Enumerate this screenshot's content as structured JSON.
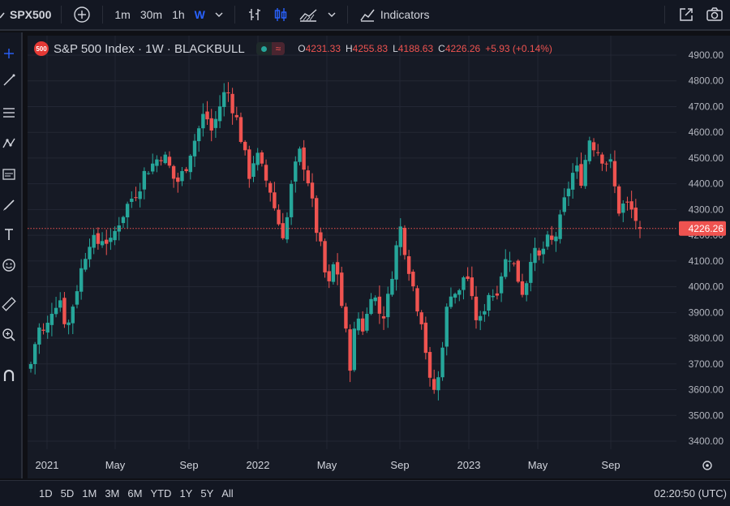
{
  "toolbar": {
    "symbol": "SPX500",
    "intervals": [
      "1m",
      "30m",
      "1h",
      "W"
    ],
    "active_interval": "W",
    "indicators_label": "Indicators"
  },
  "legend": {
    "badge": "500",
    "title": "S&P 500 Index · 1W · BLACKBULL",
    "open_label": "O",
    "open": "4231.33",
    "high_label": "H",
    "high": "4255.83",
    "low_label": "L",
    "low": "4188.63",
    "close_label": "C",
    "close": "4226.26",
    "change": "+5.93 (+0.14%)"
  },
  "price_axis": {
    "labels": [
      "4900.00",
      "4800.00",
      "4700.00",
      "4600.00",
      "4500.00",
      "4400.00",
      "4300.00",
      "4200.00",
      "4100.00",
      "4000.00",
      "3900.00",
      "3800.00",
      "3700.00",
      "3600.00",
      "3500.00",
      "3400.00"
    ],
    "current_price": "4226.26"
  },
  "time_axis": {
    "labels": [
      "2021",
      "May",
      "Sep",
      "2022",
      "May",
      "Sep",
      "2023",
      "May",
      "Sep"
    ]
  },
  "bottom": {
    "ranges": [
      "1D",
      "5D",
      "1M",
      "3M",
      "6M",
      "YTD",
      "1Y",
      "5Y",
      "All"
    ],
    "clock": "02:20:50 (UTC)"
  },
  "colors": {
    "up": "#26a69a",
    "down": "#ef5350",
    "background": "#161a25",
    "grid": "#232734",
    "accent": "#2962ff"
  },
  "chart_data": {
    "type": "candlestick",
    "xlabel": "",
    "ylabel": "",
    "ylim": [
      3350,
      4950
    ],
    "x_range": [
      "2020-12",
      "2023-10"
    ],
    "path": [
      3700,
      3840,
      3810,
      3930,
      3960,
      3830,
      3960,
      4070,
      4190,
      4160,
      4200,
      4160,
      4250,
      4300,
      4350,
      4400,
      4460,
      4480,
      4520,
      4470,
      4400,
      4440,
      4530,
      4600,
      4680,
      4600,
      4700,
      4770,
      4690,
      4580,
      4430,
      4520,
      4440,
      4380,
      4260,
      4200,
      4400,
      4520,
      4460,
      4280,
      4140,
      3980,
      4120,
      3900,
      3700,
      3890,
      3830,
      4000,
      3900,
      3900,
      4100,
      4230,
      4100,
      3960,
      3870,
      3620,
      3590,
      3850,
      4000,
      3960,
      4080,
      3900,
      3860,
      3980,
      3970,
      4070,
      4130,
      4050,
      3970,
      4140,
      4100,
      4170,
      4170,
      4250,
      4380,
      4460,
      4420,
      4580,
      4540,
      4500,
      4470,
      4300,
      4320,
      4290,
      4226
    ]
  }
}
